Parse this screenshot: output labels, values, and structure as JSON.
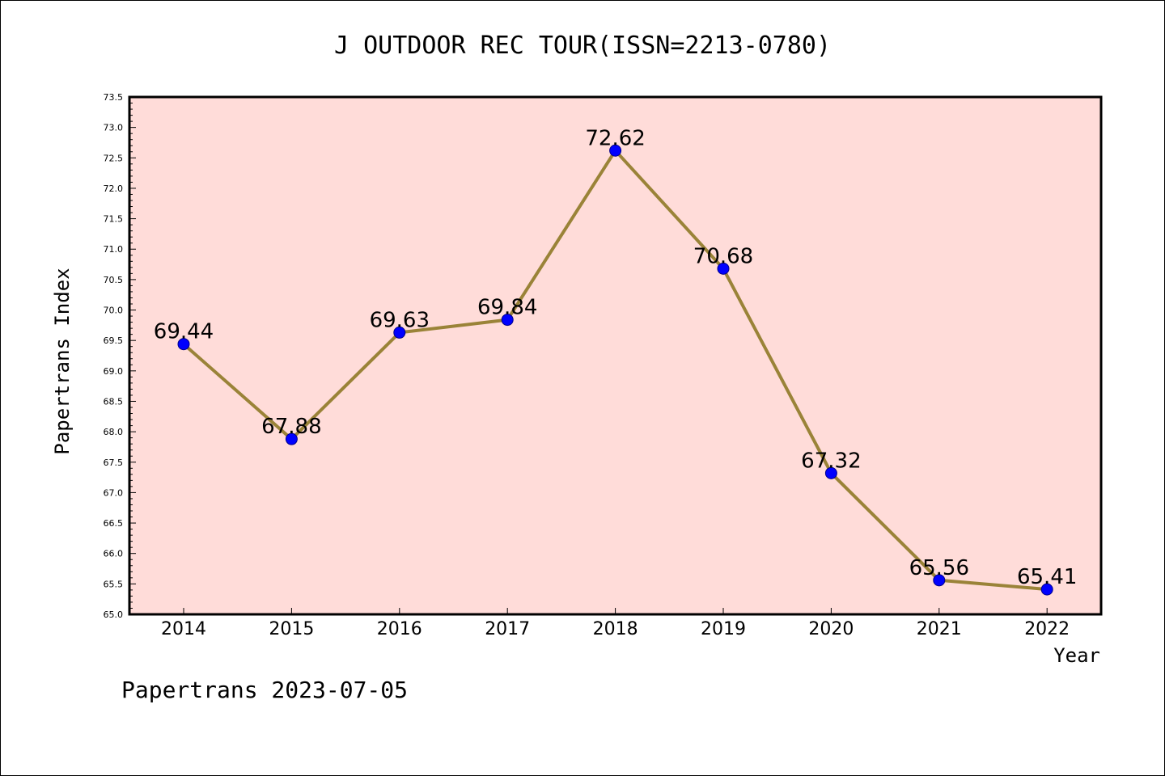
{
  "chart_data": {
    "type": "line",
    "title": "J OUTDOOR REC TOUR(ISSN=2213-0780)",
    "xlabel": "Year",
    "ylabel": "Papertrans Index",
    "categories": [
      "2014",
      "2015",
      "2016",
      "2017",
      "2018",
      "2019",
      "2020",
      "2021",
      "2022"
    ],
    "values": [
      69.44,
      67.88,
      69.63,
      69.84,
      72.62,
      70.68,
      67.32,
      65.56,
      65.41
    ],
    "data_labels": [
      "69.44",
      "67.88",
      "69.63",
      "69.84",
      "72.62",
      "70.68",
      "67.32",
      "65.56",
      "65.41"
    ],
    "ylim": [
      65.0,
      73.5
    ],
    "yticks": [
      "65.0",
      "65.5",
      "66.0",
      "66.5",
      "67.0",
      "67.5",
      "68.0",
      "68.5",
      "69.0",
      "69.5",
      "70.0",
      "70.5",
      "71.0",
      "71.5",
      "72.0",
      "72.5",
      "73.0",
      "73.5"
    ],
    "grid": false,
    "colors": {
      "plot_background": "#ffdcd9",
      "line": "#9a8338",
      "marker": "#0000ff"
    }
  },
  "footer": "Papertrans 2023-07-05"
}
